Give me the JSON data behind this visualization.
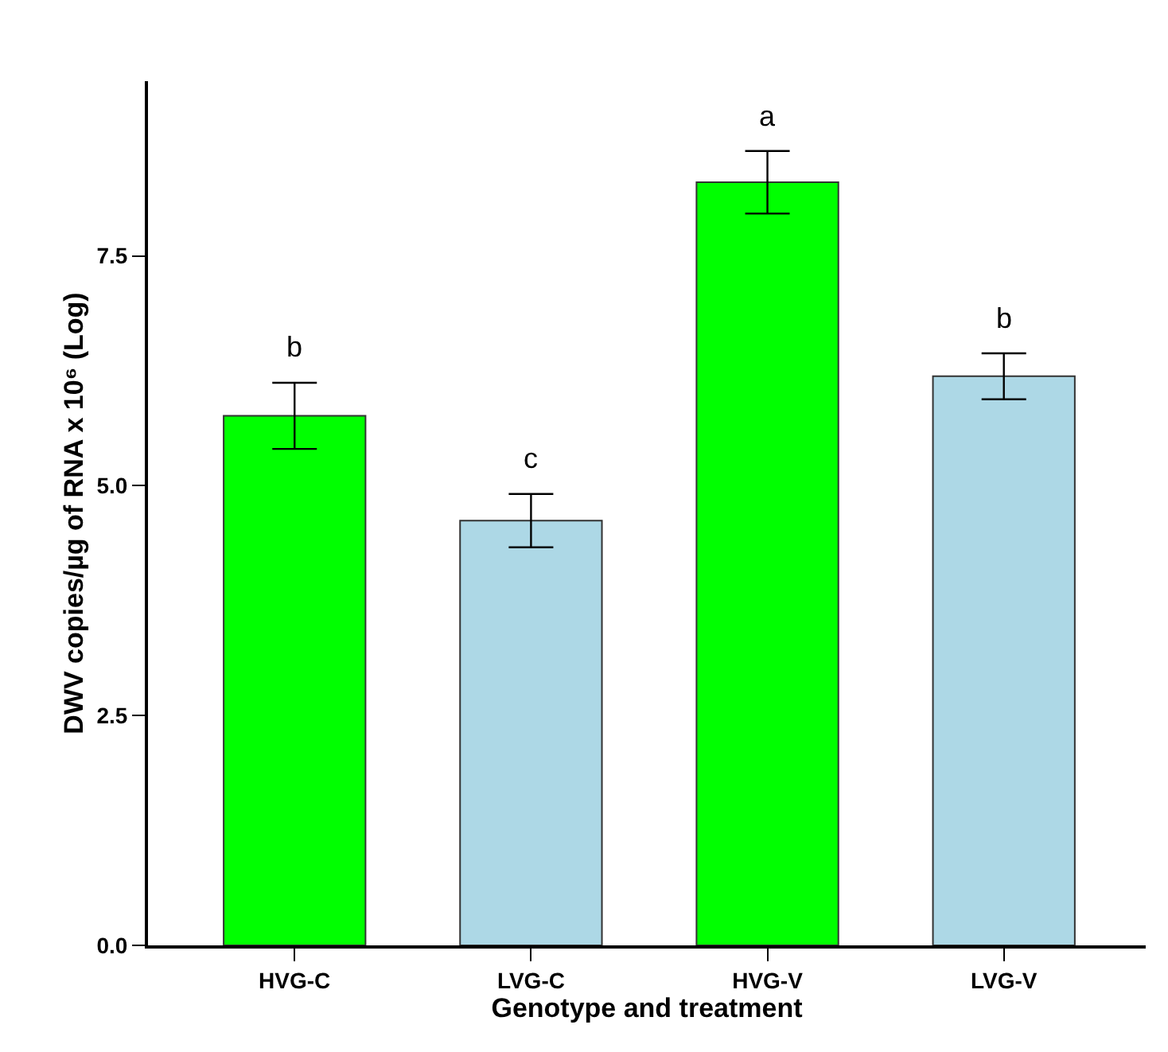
{
  "chart_data": {
    "type": "bar",
    "xlabel": "Genotype and treatment",
    "ylabel": "DWV copies/µg of RNA x 10⁶ (Log)",
    "categories": [
      "HVG-C",
      "LVG-C",
      "HVG-V",
      "LVG-V"
    ],
    "values": [
      5.76,
      4.62,
      8.3,
      6.19
    ],
    "colors": [
      "#00ff00",
      "#add8e6",
      "#00ff00",
      "#add8e6"
    ],
    "errors": [
      0.36,
      0.29,
      0.34,
      0.25
    ],
    "ylim": [
      0,
      9.4
    ],
    "yticks": [
      {
        "value": 0,
        "label": "0.0"
      },
      2.5,
      {
        "value": 5,
        "label": "5.0"
      },
      7.5
    ],
    "annotations": [
      "b",
      "c",
      "a",
      "b"
    ]
  }
}
